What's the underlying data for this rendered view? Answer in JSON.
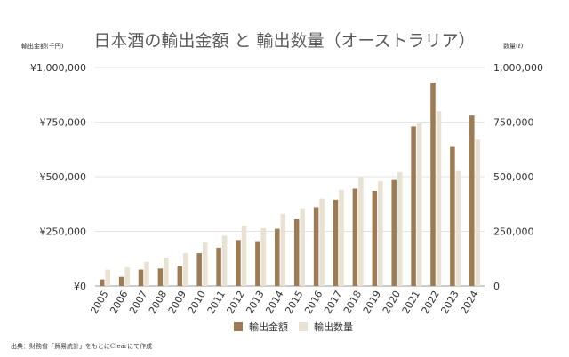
{
  "chart_data": {
    "type": "bar",
    "title": "日本酒の輸出金額 と 輸出数量（オーストラリア）",
    "left_axis_label": "輸出金額(千円)",
    "right_axis_label": "数量(ℓ)",
    "left_ticks": [
      "¥0",
      "¥250,000",
      "¥500,000",
      "¥750,000",
      "¥1,000,000"
    ],
    "right_ticks": [
      "0",
      "250,000",
      "500,000",
      "750,000",
      "1,000,000"
    ],
    "ylim": [
      0,
      1000000
    ],
    "categories": [
      "2005",
      "2006",
      "2007",
      "2008",
      "2009",
      "2010",
      "2011",
      "2012",
      "2013",
      "2014",
      "2015",
      "2016",
      "2017",
      "2018",
      "2019",
      "2020",
      "2021",
      "2022",
      "2023",
      "2024"
    ],
    "series": [
      {
        "name": "輸出金額",
        "axis": "left",
        "color": "#9c7b55",
        "values": [
          30000,
          42000,
          75000,
          80000,
          90000,
          150000,
          175000,
          210000,
          205000,
          262000,
          305000,
          360000,
          395000,
          445000,
          435000,
          485000,
          730000,
          930000,
          640000,
          780000
        ]
      },
      {
        "name": "輸出数量",
        "axis": "right",
        "color": "#e9e2d2",
        "values": [
          75000,
          85000,
          110000,
          130000,
          150000,
          200000,
          230000,
          275000,
          265000,
          330000,
          355000,
          400000,
          440000,
          500000,
          480000,
          520000,
          745000,
          800000,
          530000,
          670000
        ]
      }
    ],
    "source_note": "出典：財務省「貿易統計」をもとにClearにて作成",
    "grid": true,
    "legend_position": "bottom"
  }
}
